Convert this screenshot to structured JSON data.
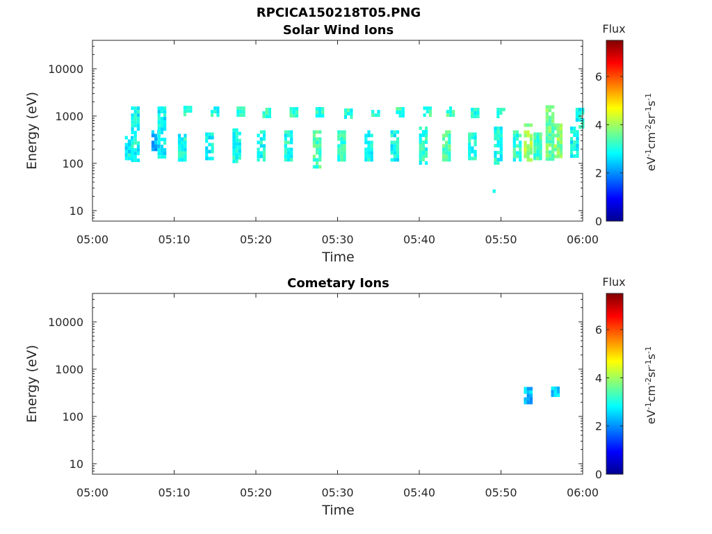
{
  "figure_title": "RPCICA150218T05.PNG",
  "chart_data": [
    {
      "type": "heatmap",
      "title": "Solar Wind Ions",
      "xlabel": "Time",
      "ylabel": "Energy (eV)",
      "xticks": [
        "05:00",
        "05:10",
        "05:20",
        "05:30",
        "05:40",
        "05:50",
        "06:00"
      ],
      "xlim": [
        "05:00",
        "06:00"
      ],
      "yscale": "log",
      "ylim": [
        6,
        40000
      ],
      "yticks": [
        "10",
        "100",
        "1000",
        "10000"
      ],
      "colorbar": {
        "title": "Flux",
        "label": "eV-1cm-2sr-1s-1",
        "min": 0,
        "max": 7.5,
        "ticks": [
          "0",
          "2",
          "4",
          "6"
        ],
        "colormap": "jet"
      },
      "bursts": [
        {
          "t": "05:04:30",
          "emin": 120,
          "emax": 380,
          "flux": 2.8
        },
        {
          "t": "05:05:15",
          "emin": 120,
          "emax": 1600,
          "flux": 2.9
        },
        {
          "t": "05:07:45",
          "emin": 200,
          "emax": 500,
          "flux": 2.3
        },
        {
          "t": "05:08:30",
          "emin": 130,
          "emax": 1600,
          "flux": 2.8
        },
        {
          "t": "05:11:00",
          "emin": 110,
          "emax": 420,
          "flux": 2.9
        },
        {
          "t": "05:11:40",
          "emin": 1000,
          "emax": 1650,
          "flux": 3.2
        },
        {
          "t": "05:14:20",
          "emin": 120,
          "emax": 450,
          "flux": 2.8
        },
        {
          "t": "05:15:00",
          "emin": 1000,
          "emax": 1600,
          "flux": 3.0
        },
        {
          "t": "05:17:40",
          "emin": 110,
          "emax": 550,
          "flux": 3.0
        },
        {
          "t": "05:18:10",
          "emin": 1000,
          "emax": 1600,
          "flux": 3.1
        },
        {
          "t": "05:20:40",
          "emin": 110,
          "emax": 500,
          "flux": 3.0
        },
        {
          "t": "05:21:20",
          "emin": 1000,
          "emax": 1500,
          "flux": 3.2
        },
        {
          "t": "05:24:00",
          "emin": 110,
          "emax": 500,
          "flux": 3.0
        },
        {
          "t": "05:24:40",
          "emin": 1000,
          "emax": 1550,
          "flux": 3.2
        },
        {
          "t": "05:27:30",
          "emin": 90,
          "emax": 500,
          "flux": 3.3
        },
        {
          "t": "05:27:50",
          "emin": 1000,
          "emax": 1550,
          "flux": 3.1
        },
        {
          "t": "05:30:30",
          "emin": 110,
          "emax": 500,
          "flux": 3.2
        },
        {
          "t": "05:31:20",
          "emin": 1000,
          "emax": 1450,
          "flux": 3.1
        },
        {
          "t": "05:33:50",
          "emin": 110,
          "emax": 500,
          "flux": 2.9
        },
        {
          "t": "05:34:40",
          "emin": 1000,
          "emax": 1350,
          "flux": 3.0
        },
        {
          "t": "05:37:00",
          "emin": 120,
          "emax": 500,
          "flux": 2.9
        },
        {
          "t": "05:37:40",
          "emin": 1000,
          "emax": 1550,
          "flux": 3.2
        },
        {
          "t": "05:40:30",
          "emin": 100,
          "emax": 600,
          "flux": 3.1
        },
        {
          "t": "05:41:00",
          "emin": 1000,
          "emax": 1600,
          "flux": 3.2
        },
        {
          "t": "05:43:20",
          "emin": 120,
          "emax": 500,
          "flux": 3.4
        },
        {
          "t": "05:43:50",
          "emin": 1000,
          "emax": 1600,
          "flux": 3.3
        },
        {
          "t": "05:46:30",
          "emin": 120,
          "emax": 450,
          "flux": 3.0
        },
        {
          "t": "05:46:50",
          "emin": 1000,
          "emax": 1500,
          "flux": 3.1
        },
        {
          "t": "05:49:10",
          "emin": 25,
          "emax": 28,
          "flux": 2.7
        },
        {
          "t": "05:49:40",
          "emin": 110,
          "emax": 600,
          "flux": 3.0
        },
        {
          "t": "05:50:00",
          "emin": 1000,
          "emax": 1500,
          "flux": 3.1
        },
        {
          "t": "05:52:00",
          "emin": 120,
          "emax": 500,
          "flux": 3.1
        },
        {
          "t": "05:53:20",
          "emin": 110,
          "emax": 700,
          "flux": 4.0
        },
        {
          "t": "05:54:30",
          "emin": 120,
          "emax": 450,
          "flux": 3.3
        },
        {
          "t": "05:56:00",
          "emin": 120,
          "emax": 1700,
          "flux": 3.6
        },
        {
          "t": "05:57:00",
          "emin": 150,
          "emax": 700,
          "flux": 3.8
        },
        {
          "t": "05:59:00",
          "emin": 140,
          "emax": 600,
          "flux": 2.9
        },
        {
          "t": "05:59:40",
          "emin": 600,
          "emax": 1500,
          "flux": 2.9
        }
      ]
    },
    {
      "type": "heatmap",
      "title": "Cometary Ions",
      "xlabel": "Time",
      "ylabel": "Energy (eV)",
      "xticks": [
        "05:00",
        "05:10",
        "05:20",
        "05:30",
        "05:40",
        "05:50",
        "06:00"
      ],
      "xlim": [
        "05:00",
        "06:00"
      ],
      "yscale": "log",
      "ylim": [
        6,
        40000
      ],
      "yticks": [
        "10",
        "100",
        "1000",
        "10000"
      ],
      "colorbar": {
        "title": "Flux",
        "label": "eV-1cm-2sr-1s-1",
        "min": 0,
        "max": 7.5,
        "ticks": [
          "0",
          "2",
          "4",
          "6"
        ],
        "colormap": "jet"
      },
      "bursts": [
        {
          "t": "05:53:20",
          "emin": 210,
          "emax": 420,
          "flux": 2.3
        },
        {
          "t": "05:56:40",
          "emin": 300,
          "emax": 430,
          "flux": 2.4
        }
      ]
    }
  ]
}
